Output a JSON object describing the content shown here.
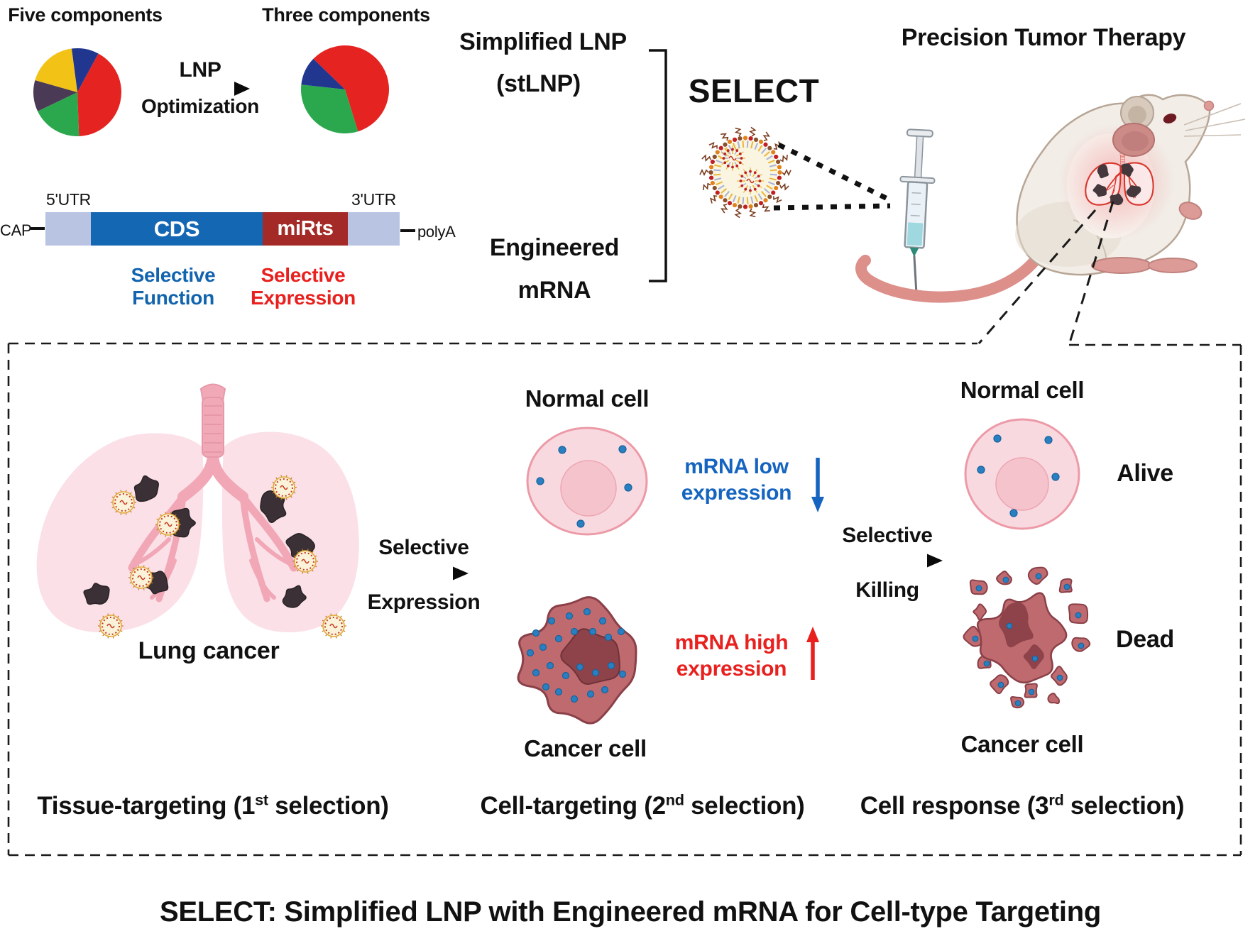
{
  "header": {
    "five_components": "Five components",
    "three_components": "Three components",
    "lnp": "LNP",
    "optimization": "Optimization",
    "simplified_lnp": "Simplified LNP",
    "stlnp": "(stLNP)",
    "engineered": "Engineered",
    "mrna": "mRNA",
    "select": "SELECT",
    "precision_title": "Precision Tumor Therapy"
  },
  "construct": {
    "cap": "CAP",
    "utr5": "5'UTR",
    "cds": "CDS",
    "mirts": "miRts",
    "utr3": "3'UTR",
    "polya": "polyA",
    "selective_function_1": "Selective",
    "selective_function_2": "Function",
    "selective_expression_1": "Selective",
    "selective_expression_2": "Expression"
  },
  "panels": {
    "lung": {
      "caption": "Lung cancer",
      "selection_pre": "Tissue-targeting (1",
      "selection_sup": "st",
      "selection_post": " selection)"
    },
    "arrow1": {
      "line1": "Selective",
      "line2": "Expression"
    },
    "cell_targeting": {
      "normal_label": "Normal cell",
      "low_1": "mRNA low",
      "low_2": "expression",
      "cancer_label": "Cancer cell",
      "high_1": "mRNA high",
      "high_2": "expression",
      "selection_pre": "Cell-targeting (2",
      "selection_sup": "nd",
      "selection_post": " selection)"
    },
    "arrow2": {
      "line1": "Selective",
      "line2": "Killing"
    },
    "response": {
      "normal_label": "Normal cell",
      "alive": "Alive",
      "dead": "Dead",
      "cancer_label": "Cancer cell",
      "selection_pre": "Cell response (3",
      "selection_sup": "rd",
      "selection_post": " selection)"
    }
  },
  "footer": {
    "title": "SELECT: Simplified LNP with Engineered mRNA for Cell-type Targeting"
  },
  "colors": {
    "accent_blue": "#1264ae",
    "accent_red": "#e8201e",
    "cds_blue": "#1467b3",
    "mirts_dark_red": "#a32a26",
    "utr_lavender": "#b9c4e3",
    "mrna_dot_blue": "#2a7fc1",
    "normal_cell_pink": "#f9d9e0",
    "cancer_cell_red": "#bf6a6e",
    "tumor_black": "#3a3035"
  },
  "chart_data": [
    {
      "type": "pie",
      "title": "Five components",
      "start_deg": -7.5,
      "slices": [
        {
          "value": 10,
          "color": "#20368f"
        },
        {
          "value": 41.5,
          "color": "#e52421"
        },
        {
          "value": 18.5,
          "color": "#2ba84e"
        },
        {
          "value": 11.5,
          "color": "#4a3a55"
        },
        {
          "value": 18.5,
          "color": "#f3c216"
        }
      ]
    },
    {
      "type": "pie",
      "title": "Three components",
      "start_deg": -46,
      "slices": [
        {
          "value": 58,
          "color": "#e52421"
        },
        {
          "value": 31.5,
          "color": "#2ba84e"
        },
        {
          "value": 10.5,
          "color": "#20368f"
        }
      ]
    }
  ]
}
